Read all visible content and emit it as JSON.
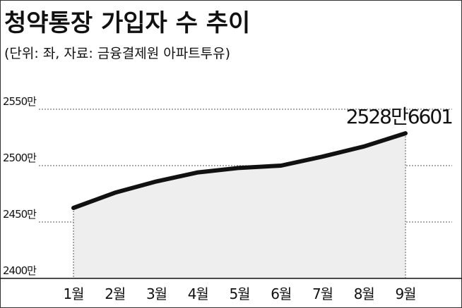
{
  "chart_data": {
    "type": "line",
    "title": "청약통장 가입자 수 추이",
    "subtitle": "(단위: 좌, 자료: 금융결제원 아파트투유)",
    "categories": [
      "1월",
      "2월",
      "3월",
      "4월",
      "5월",
      "6월",
      "7월",
      "8월",
      "9월"
    ],
    "series": [
      {
        "name": "청약통장 가입자 수",
        "color": "#111111",
        "values": [
          24625000,
          24760000,
          24860000,
          24940000,
          24980000,
          25000000,
          25080000,
          25170000,
          25286601
        ],
        "value_labels": [
          null,
          null,
          null,
          null,
          null,
          null,
          null,
          null,
          "2528만6601"
        ]
      }
    ],
    "ylim": [
      24000000,
      25550000
    ],
    "yticks": [
      {
        "value": 24000000,
        "label": "2400만"
      },
      {
        "value": 24500000,
        "label": "2450만"
      },
      {
        "value": 25000000,
        "label": "2500만"
      },
      {
        "value": 25500000,
        "label": "2550만"
      }
    ],
    "grid": true
  }
}
